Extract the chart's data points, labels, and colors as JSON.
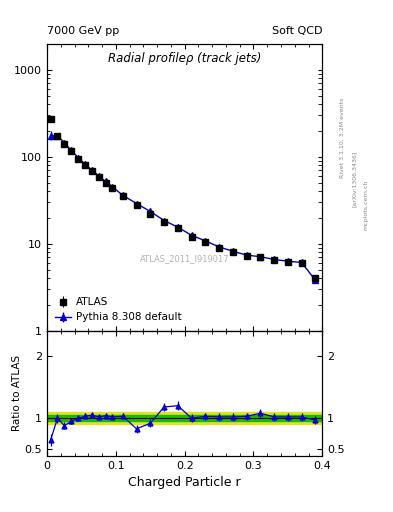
{
  "title_top_left": "7000 GeV pp",
  "title_top_right": "Soft QCD",
  "main_title": "Radial profileρ (track jets)",
  "watermark": "ATLAS_2011_I919017",
  "right_label": "Rivet 3.1.10, 3.2M events",
  "right_label2": "[arXiv:1306.3436]",
  "mcplots_label": "mcplots.cern.ch",
  "xlabel": "Charged Particle r",
  "ylabel_ratio": "Ratio to ATLAS",
  "xlim": [
    0.0,
    0.4
  ],
  "ylim_main": [
    1.0,
    2000.0
  ],
  "ylim_ratio": [
    0.4,
    2.4
  ],
  "atlas_x": [
    0.005,
    0.015,
    0.025,
    0.035,
    0.045,
    0.055,
    0.065,
    0.075,
    0.085,
    0.095,
    0.11,
    0.13,
    0.15,
    0.17,
    0.19,
    0.21,
    0.23,
    0.25,
    0.27,
    0.29,
    0.31,
    0.33,
    0.35,
    0.37,
    0.39
  ],
  "atlas_y": [
    270.0,
    175.0,
    140.0,
    115.0,
    95.0,
    80.0,
    68.0,
    58.0,
    50.0,
    44.0,
    35.0,
    28.0,
    22.0,
    18.0,
    15.0,
    12.0,
    10.5,
    9.0,
    8.0,
    7.2,
    7.0,
    6.5,
    6.2,
    6.0,
    4.0
  ],
  "atlas_yerr": [
    15.0,
    8.0,
    6.0,
    5.0,
    4.0,
    3.5,
    3.0,
    2.5,
    2.0,
    2.0,
    1.5,
    1.2,
    1.0,
    0.8,
    0.7,
    0.6,
    0.5,
    0.5,
    0.4,
    0.4,
    0.4,
    0.3,
    0.3,
    0.3,
    0.3
  ],
  "pythia_x": [
    0.005,
    0.015,
    0.025,
    0.035,
    0.045,
    0.055,
    0.065,
    0.075,
    0.085,
    0.095,
    0.11,
    0.13,
    0.15,
    0.17,
    0.19,
    0.21,
    0.23,
    0.25,
    0.27,
    0.29,
    0.31,
    0.33,
    0.35,
    0.37,
    0.39
  ],
  "pythia_y": [
    175.0,
    175.0,
    145.0,
    118.0,
    98.0,
    82.0,
    70.0,
    60.0,
    52.0,
    45.0,
    36.0,
    29.0,
    23.5,
    18.5,
    15.5,
    12.5,
    10.8,
    9.2,
    8.2,
    7.4,
    7.1,
    6.6,
    6.3,
    6.1,
    3.8
  ],
  "pythia_yerr": [
    20.0,
    8.0,
    6.0,
    5.0,
    4.0,
    3.5,
    3.0,
    2.5,
    2.0,
    2.0,
    1.5,
    1.2,
    1.0,
    0.8,
    0.7,
    0.6,
    0.5,
    0.5,
    0.4,
    0.4,
    0.4,
    0.3,
    0.3,
    0.3,
    0.3
  ],
  "ratio_x": [
    0.005,
    0.015,
    0.025,
    0.035,
    0.045,
    0.055,
    0.065,
    0.075,
    0.085,
    0.095,
    0.11,
    0.13,
    0.15,
    0.17,
    0.19,
    0.21,
    0.23,
    0.25,
    0.27,
    0.29,
    0.31,
    0.33,
    0.35,
    0.37,
    0.39
  ],
  "ratio_y": [
    0.65,
    1.0,
    0.88,
    0.95,
    1.0,
    1.03,
    1.05,
    1.02,
    1.04,
    1.02,
    1.03,
    0.83,
    0.92,
    1.18,
    1.2,
    1.0,
    1.03,
    1.02,
    1.02,
    1.03,
    1.08,
    1.02,
    1.02,
    1.02,
    0.97
  ],
  "ratio_yerr": [
    0.1,
    0.07,
    0.06,
    0.05,
    0.05,
    0.05,
    0.05,
    0.05,
    0.05,
    0.05,
    0.05,
    0.06,
    0.06,
    0.07,
    0.07,
    0.06,
    0.06,
    0.06,
    0.06,
    0.06,
    0.07,
    0.06,
    0.06,
    0.06,
    0.06
  ],
  "band_green_inner": 0.05,
  "band_yellow_outer": 0.1,
  "atlas_color": "black",
  "pythia_color": "#0000cc",
  "green_band_color": "#00bb00",
  "yellow_band_color": "#dddd00",
  "legend_atlas": "ATLAS",
  "legend_pythia": "Pythia 8.308 default",
  "xticks": [
    0.0,
    0.1,
    0.2,
    0.3,
    0.4
  ],
  "xtick_labels": [
    "0",
    "0.1",
    "0.2",
    "0.3",
    "0.4"
  ]
}
